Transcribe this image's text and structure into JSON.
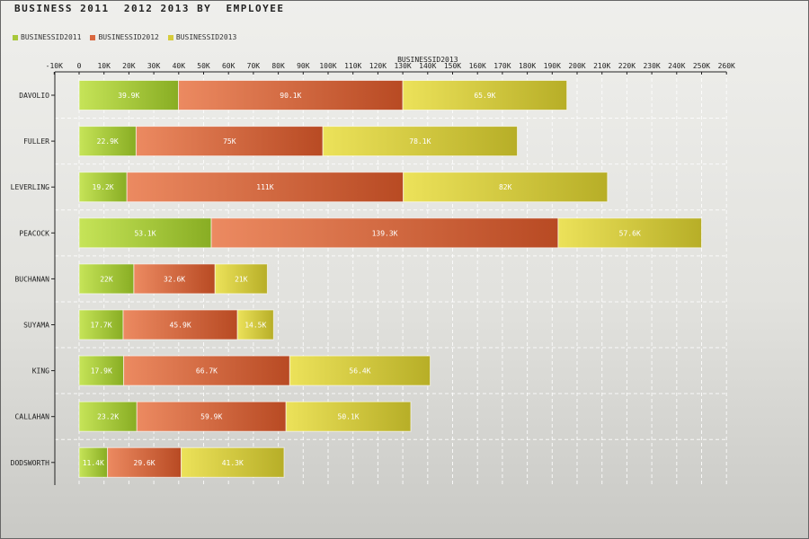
{
  "chart_data": {
    "type": "bar",
    "orientation": "horizontal",
    "stacked": true,
    "title": "BUSINESS 2011  2012 2013 BY  EMPLOYEE",
    "xlabel": "BUSINESSID2013",
    "xlim": [
      -10,
      260
    ],
    "x_ticks": [
      "-10K",
      "0",
      "10K",
      "20K",
      "30K",
      "40K",
      "50K",
      "60K",
      "70K",
      "80K",
      "90K",
      "100K",
      "110K",
      "120K",
      "130K",
      "140K",
      "150K",
      "160K",
      "170K",
      "180K",
      "190K",
      "200K",
      "210K",
      "220K",
      "230K",
      "240K",
      "250K",
      "260K"
    ],
    "tick_values": [
      -10,
      0,
      10,
      20,
      30,
      40,
      50,
      60,
      70,
      80,
      90,
      100,
      110,
      120,
      130,
      140,
      150,
      160,
      170,
      180,
      190,
      200,
      210,
      220,
      230,
      240,
      250,
      260
    ],
    "grid": true,
    "legend_position": "top-left",
    "categories": [
      "DAVOLIO",
      "FULLER",
      "LEVERLING",
      "PEACOCK",
      "BUCHANAN",
      "SUYAMA",
      "KING",
      "CALLAHAN",
      "DODSWORTH"
    ],
    "series": [
      {
        "name": "BUSINESSID2011",
        "color": "#a8c83a",
        "values": [
          39.9,
          22.9,
          19.2,
          53.1,
          22,
          17.7,
          17.9,
          23.2,
          11.4
        ],
        "labels": [
          "39.9K",
          "22.9K",
          "19.2K",
          "53.1K",
          "22K",
          "17.7K",
          "17.9K",
          "23.2K",
          "11.4K"
        ]
      },
      {
        "name": "BUSINESSID2012",
        "color": "#d9683f",
        "values": [
          90.1,
          75,
          111,
          139.3,
          32.6,
          45.9,
          66.7,
          59.9,
          29.6
        ],
        "labels": [
          "90.1K",
          "75K",
          "111K",
          "139.3K",
          "32.6K",
          "45.9K",
          "66.7K",
          "59.9K",
          "29.6K"
        ]
      },
      {
        "name": "BUSINESSID2013",
        "color": "#d6cc3a",
        "values": [
          65.9,
          78.1,
          82,
          57.6,
          21,
          14.5,
          56.4,
          50.1,
          41.3
        ],
        "labels": [
          "65.9K",
          "78.1K",
          "82K",
          "57.6K",
          "21K",
          "14.5K",
          "56.4K",
          "50.1K",
          "41.3K"
        ]
      }
    ]
  }
}
